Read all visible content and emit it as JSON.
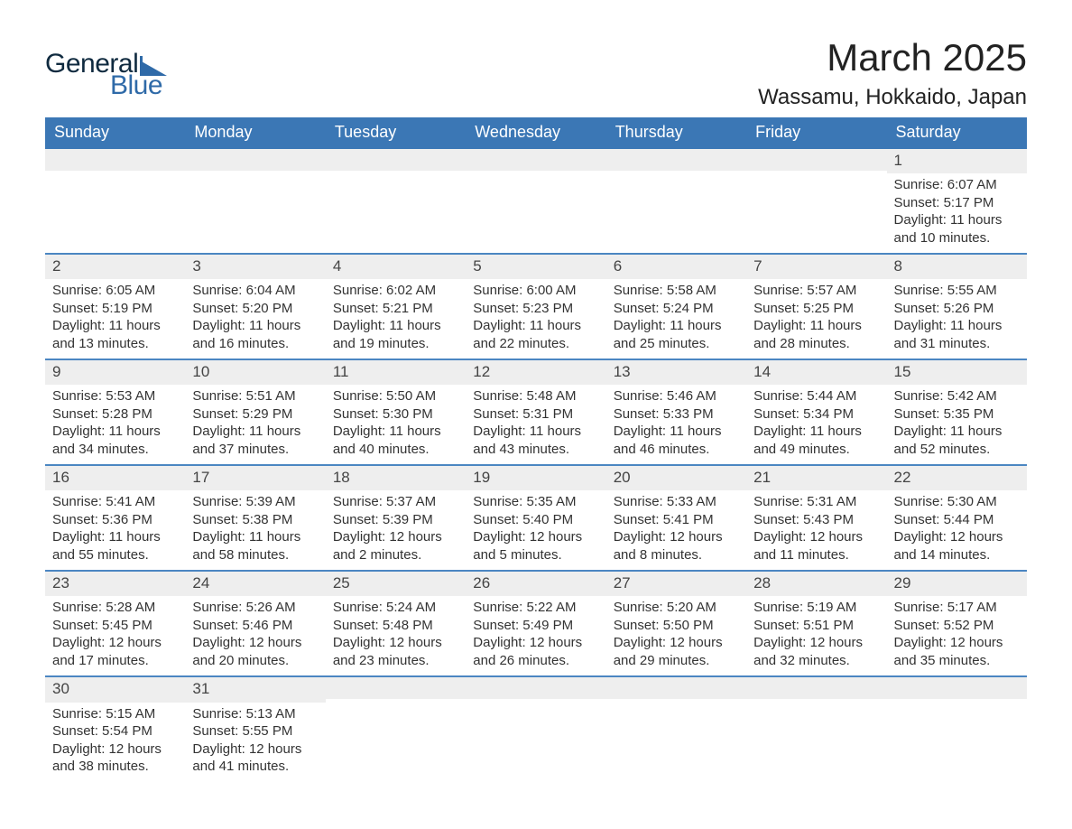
{
  "logo": {
    "text1": "General",
    "text2": "Blue",
    "shape_color": "#2f6aa8",
    "text1_color": "#0f2a3f"
  },
  "title": "March 2025",
  "location": "Wassamu, Hokkaido, Japan",
  "header_bg": "#3b77b5",
  "header_fg": "#ffffff",
  "daynum_bg": "#eeeeee",
  "week_border": "#4b86c2",
  "text_color": "#333333",
  "weekdays": [
    "Sunday",
    "Monday",
    "Tuesday",
    "Wednesday",
    "Thursday",
    "Friday",
    "Saturday"
  ],
  "weeks": [
    [
      {
        "blank": true
      },
      {
        "blank": true
      },
      {
        "blank": true
      },
      {
        "blank": true
      },
      {
        "blank": true
      },
      {
        "blank": true
      },
      {
        "day": "1",
        "sunrise": "Sunrise: 6:07 AM",
        "sunset": "Sunset: 5:17 PM",
        "daylight": "Daylight: 11 hours and 10 minutes."
      }
    ],
    [
      {
        "day": "2",
        "sunrise": "Sunrise: 6:05 AM",
        "sunset": "Sunset: 5:19 PM",
        "daylight": "Daylight: 11 hours and 13 minutes."
      },
      {
        "day": "3",
        "sunrise": "Sunrise: 6:04 AM",
        "sunset": "Sunset: 5:20 PM",
        "daylight": "Daylight: 11 hours and 16 minutes."
      },
      {
        "day": "4",
        "sunrise": "Sunrise: 6:02 AM",
        "sunset": "Sunset: 5:21 PM",
        "daylight": "Daylight: 11 hours and 19 minutes."
      },
      {
        "day": "5",
        "sunrise": "Sunrise: 6:00 AM",
        "sunset": "Sunset: 5:23 PM",
        "daylight": "Daylight: 11 hours and 22 minutes."
      },
      {
        "day": "6",
        "sunrise": "Sunrise: 5:58 AM",
        "sunset": "Sunset: 5:24 PM",
        "daylight": "Daylight: 11 hours and 25 minutes."
      },
      {
        "day": "7",
        "sunrise": "Sunrise: 5:57 AM",
        "sunset": "Sunset: 5:25 PM",
        "daylight": "Daylight: 11 hours and 28 minutes."
      },
      {
        "day": "8",
        "sunrise": "Sunrise: 5:55 AM",
        "sunset": "Sunset: 5:26 PM",
        "daylight": "Daylight: 11 hours and 31 minutes."
      }
    ],
    [
      {
        "day": "9",
        "sunrise": "Sunrise: 5:53 AM",
        "sunset": "Sunset: 5:28 PM",
        "daylight": "Daylight: 11 hours and 34 minutes."
      },
      {
        "day": "10",
        "sunrise": "Sunrise: 5:51 AM",
        "sunset": "Sunset: 5:29 PM",
        "daylight": "Daylight: 11 hours and 37 minutes."
      },
      {
        "day": "11",
        "sunrise": "Sunrise: 5:50 AM",
        "sunset": "Sunset: 5:30 PM",
        "daylight": "Daylight: 11 hours and 40 minutes."
      },
      {
        "day": "12",
        "sunrise": "Sunrise: 5:48 AM",
        "sunset": "Sunset: 5:31 PM",
        "daylight": "Daylight: 11 hours and 43 minutes."
      },
      {
        "day": "13",
        "sunrise": "Sunrise: 5:46 AM",
        "sunset": "Sunset: 5:33 PM",
        "daylight": "Daylight: 11 hours and 46 minutes."
      },
      {
        "day": "14",
        "sunrise": "Sunrise: 5:44 AM",
        "sunset": "Sunset: 5:34 PM",
        "daylight": "Daylight: 11 hours and 49 minutes."
      },
      {
        "day": "15",
        "sunrise": "Sunrise: 5:42 AM",
        "sunset": "Sunset: 5:35 PM",
        "daylight": "Daylight: 11 hours and 52 minutes."
      }
    ],
    [
      {
        "day": "16",
        "sunrise": "Sunrise: 5:41 AM",
        "sunset": "Sunset: 5:36 PM",
        "daylight": "Daylight: 11 hours and 55 minutes."
      },
      {
        "day": "17",
        "sunrise": "Sunrise: 5:39 AM",
        "sunset": "Sunset: 5:38 PM",
        "daylight": "Daylight: 11 hours and 58 minutes."
      },
      {
        "day": "18",
        "sunrise": "Sunrise: 5:37 AM",
        "sunset": "Sunset: 5:39 PM",
        "daylight": "Daylight: 12 hours and 2 minutes."
      },
      {
        "day": "19",
        "sunrise": "Sunrise: 5:35 AM",
        "sunset": "Sunset: 5:40 PM",
        "daylight": "Daylight: 12 hours and 5 minutes."
      },
      {
        "day": "20",
        "sunrise": "Sunrise: 5:33 AM",
        "sunset": "Sunset: 5:41 PM",
        "daylight": "Daylight: 12 hours and 8 minutes."
      },
      {
        "day": "21",
        "sunrise": "Sunrise: 5:31 AM",
        "sunset": "Sunset: 5:43 PM",
        "daylight": "Daylight: 12 hours and 11 minutes."
      },
      {
        "day": "22",
        "sunrise": "Sunrise: 5:30 AM",
        "sunset": "Sunset: 5:44 PM",
        "daylight": "Daylight: 12 hours and 14 minutes."
      }
    ],
    [
      {
        "day": "23",
        "sunrise": "Sunrise: 5:28 AM",
        "sunset": "Sunset: 5:45 PM",
        "daylight": "Daylight: 12 hours and 17 minutes."
      },
      {
        "day": "24",
        "sunrise": "Sunrise: 5:26 AM",
        "sunset": "Sunset: 5:46 PM",
        "daylight": "Daylight: 12 hours and 20 minutes."
      },
      {
        "day": "25",
        "sunrise": "Sunrise: 5:24 AM",
        "sunset": "Sunset: 5:48 PM",
        "daylight": "Daylight: 12 hours and 23 minutes."
      },
      {
        "day": "26",
        "sunrise": "Sunrise: 5:22 AM",
        "sunset": "Sunset: 5:49 PM",
        "daylight": "Daylight: 12 hours and 26 minutes."
      },
      {
        "day": "27",
        "sunrise": "Sunrise: 5:20 AM",
        "sunset": "Sunset: 5:50 PM",
        "daylight": "Daylight: 12 hours and 29 minutes."
      },
      {
        "day": "28",
        "sunrise": "Sunrise: 5:19 AM",
        "sunset": "Sunset: 5:51 PM",
        "daylight": "Daylight: 12 hours and 32 minutes."
      },
      {
        "day": "29",
        "sunrise": "Sunrise: 5:17 AM",
        "sunset": "Sunset: 5:52 PM",
        "daylight": "Daylight: 12 hours and 35 minutes."
      }
    ],
    [
      {
        "day": "30",
        "sunrise": "Sunrise: 5:15 AM",
        "sunset": "Sunset: 5:54 PM",
        "daylight": "Daylight: 12 hours and 38 minutes."
      },
      {
        "day": "31",
        "sunrise": "Sunrise: 5:13 AM",
        "sunset": "Sunset: 5:55 PM",
        "daylight": "Daylight: 12 hours and 41 minutes."
      },
      {
        "blank": true
      },
      {
        "blank": true
      },
      {
        "blank": true
      },
      {
        "blank": true
      },
      {
        "blank": true
      }
    ]
  ]
}
